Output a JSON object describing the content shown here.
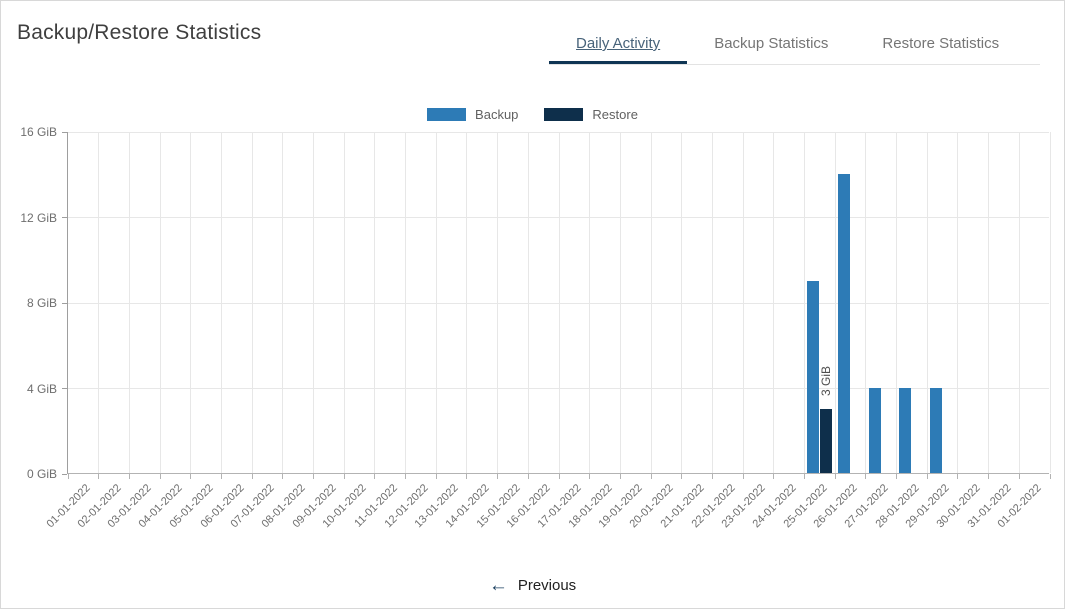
{
  "header": {
    "title": "Backup/Restore Statistics"
  },
  "tabs": [
    {
      "label": "Daily Activity",
      "active": true
    },
    {
      "label": "Backup Statistics",
      "active": false
    },
    {
      "label": "Restore Statistics",
      "active": false
    }
  ],
  "colors": {
    "tab_indicator": "#0f3554",
    "tab_active_text": "#48637a",
    "backup": "#2d7bb6",
    "restore": "#0e2f4b"
  },
  "chart_data": {
    "type": "bar",
    "title": "",
    "xlabel": "",
    "ylabel": "",
    "ylim": [
      0,
      16
    ],
    "grid": true,
    "legend_position": "top",
    "y_ticks": [
      {
        "value": 0,
        "label": "0 GiB"
      },
      {
        "value": 4,
        "label": "4 GiB"
      },
      {
        "value": 8,
        "label": "8 GiB"
      },
      {
        "value": 12,
        "label": "12 GiB"
      },
      {
        "value": 16,
        "label": "16 GiB"
      }
    ],
    "categories": [
      "01-01-2022",
      "02-01-2022",
      "03-01-2022",
      "04-01-2022",
      "05-01-2022",
      "06-01-2022",
      "07-01-2022",
      "08-01-2022",
      "09-01-2022",
      "10-01-2022",
      "11-01-2022",
      "12-01-2022",
      "13-01-2022",
      "14-01-2022",
      "15-01-2022",
      "16-01-2022",
      "17-01-2022",
      "18-01-2022",
      "19-01-2022",
      "20-01-2022",
      "21-01-2022",
      "22-01-2022",
      "23-01-2022",
      "24-01-2022",
      "25-01-2022",
      "26-01-2022",
      "27-01-2022",
      "28-01-2022",
      "29-01-2022",
      "30-01-2022",
      "31-01-2022",
      "01-02-2022"
    ],
    "series": [
      {
        "name": "Backup",
        "color": "#2d7bb6",
        "values": [
          0,
          0,
          0,
          0,
          0,
          0,
          0,
          0,
          0,
          0,
          0,
          0,
          0,
          0,
          0,
          0,
          0,
          0,
          0,
          0,
          0,
          0,
          0,
          0,
          9,
          14,
          4,
          4,
          4,
          0,
          0,
          0
        ]
      },
      {
        "name": "Restore",
        "color": "#0e2f4b",
        "values": [
          0,
          0,
          0,
          0,
          0,
          0,
          0,
          0,
          0,
          0,
          0,
          0,
          0,
          0,
          0,
          0,
          0,
          0,
          0,
          0,
          0,
          0,
          0,
          0,
          3,
          0,
          0,
          0,
          0,
          0,
          0,
          0
        ]
      }
    ],
    "bar_label": {
      "series": "Restore",
      "category": "25-01-2022",
      "text": "3 GiB"
    }
  },
  "pager": {
    "previous_label": "Previous",
    "previous_icon": "arrow-left"
  }
}
